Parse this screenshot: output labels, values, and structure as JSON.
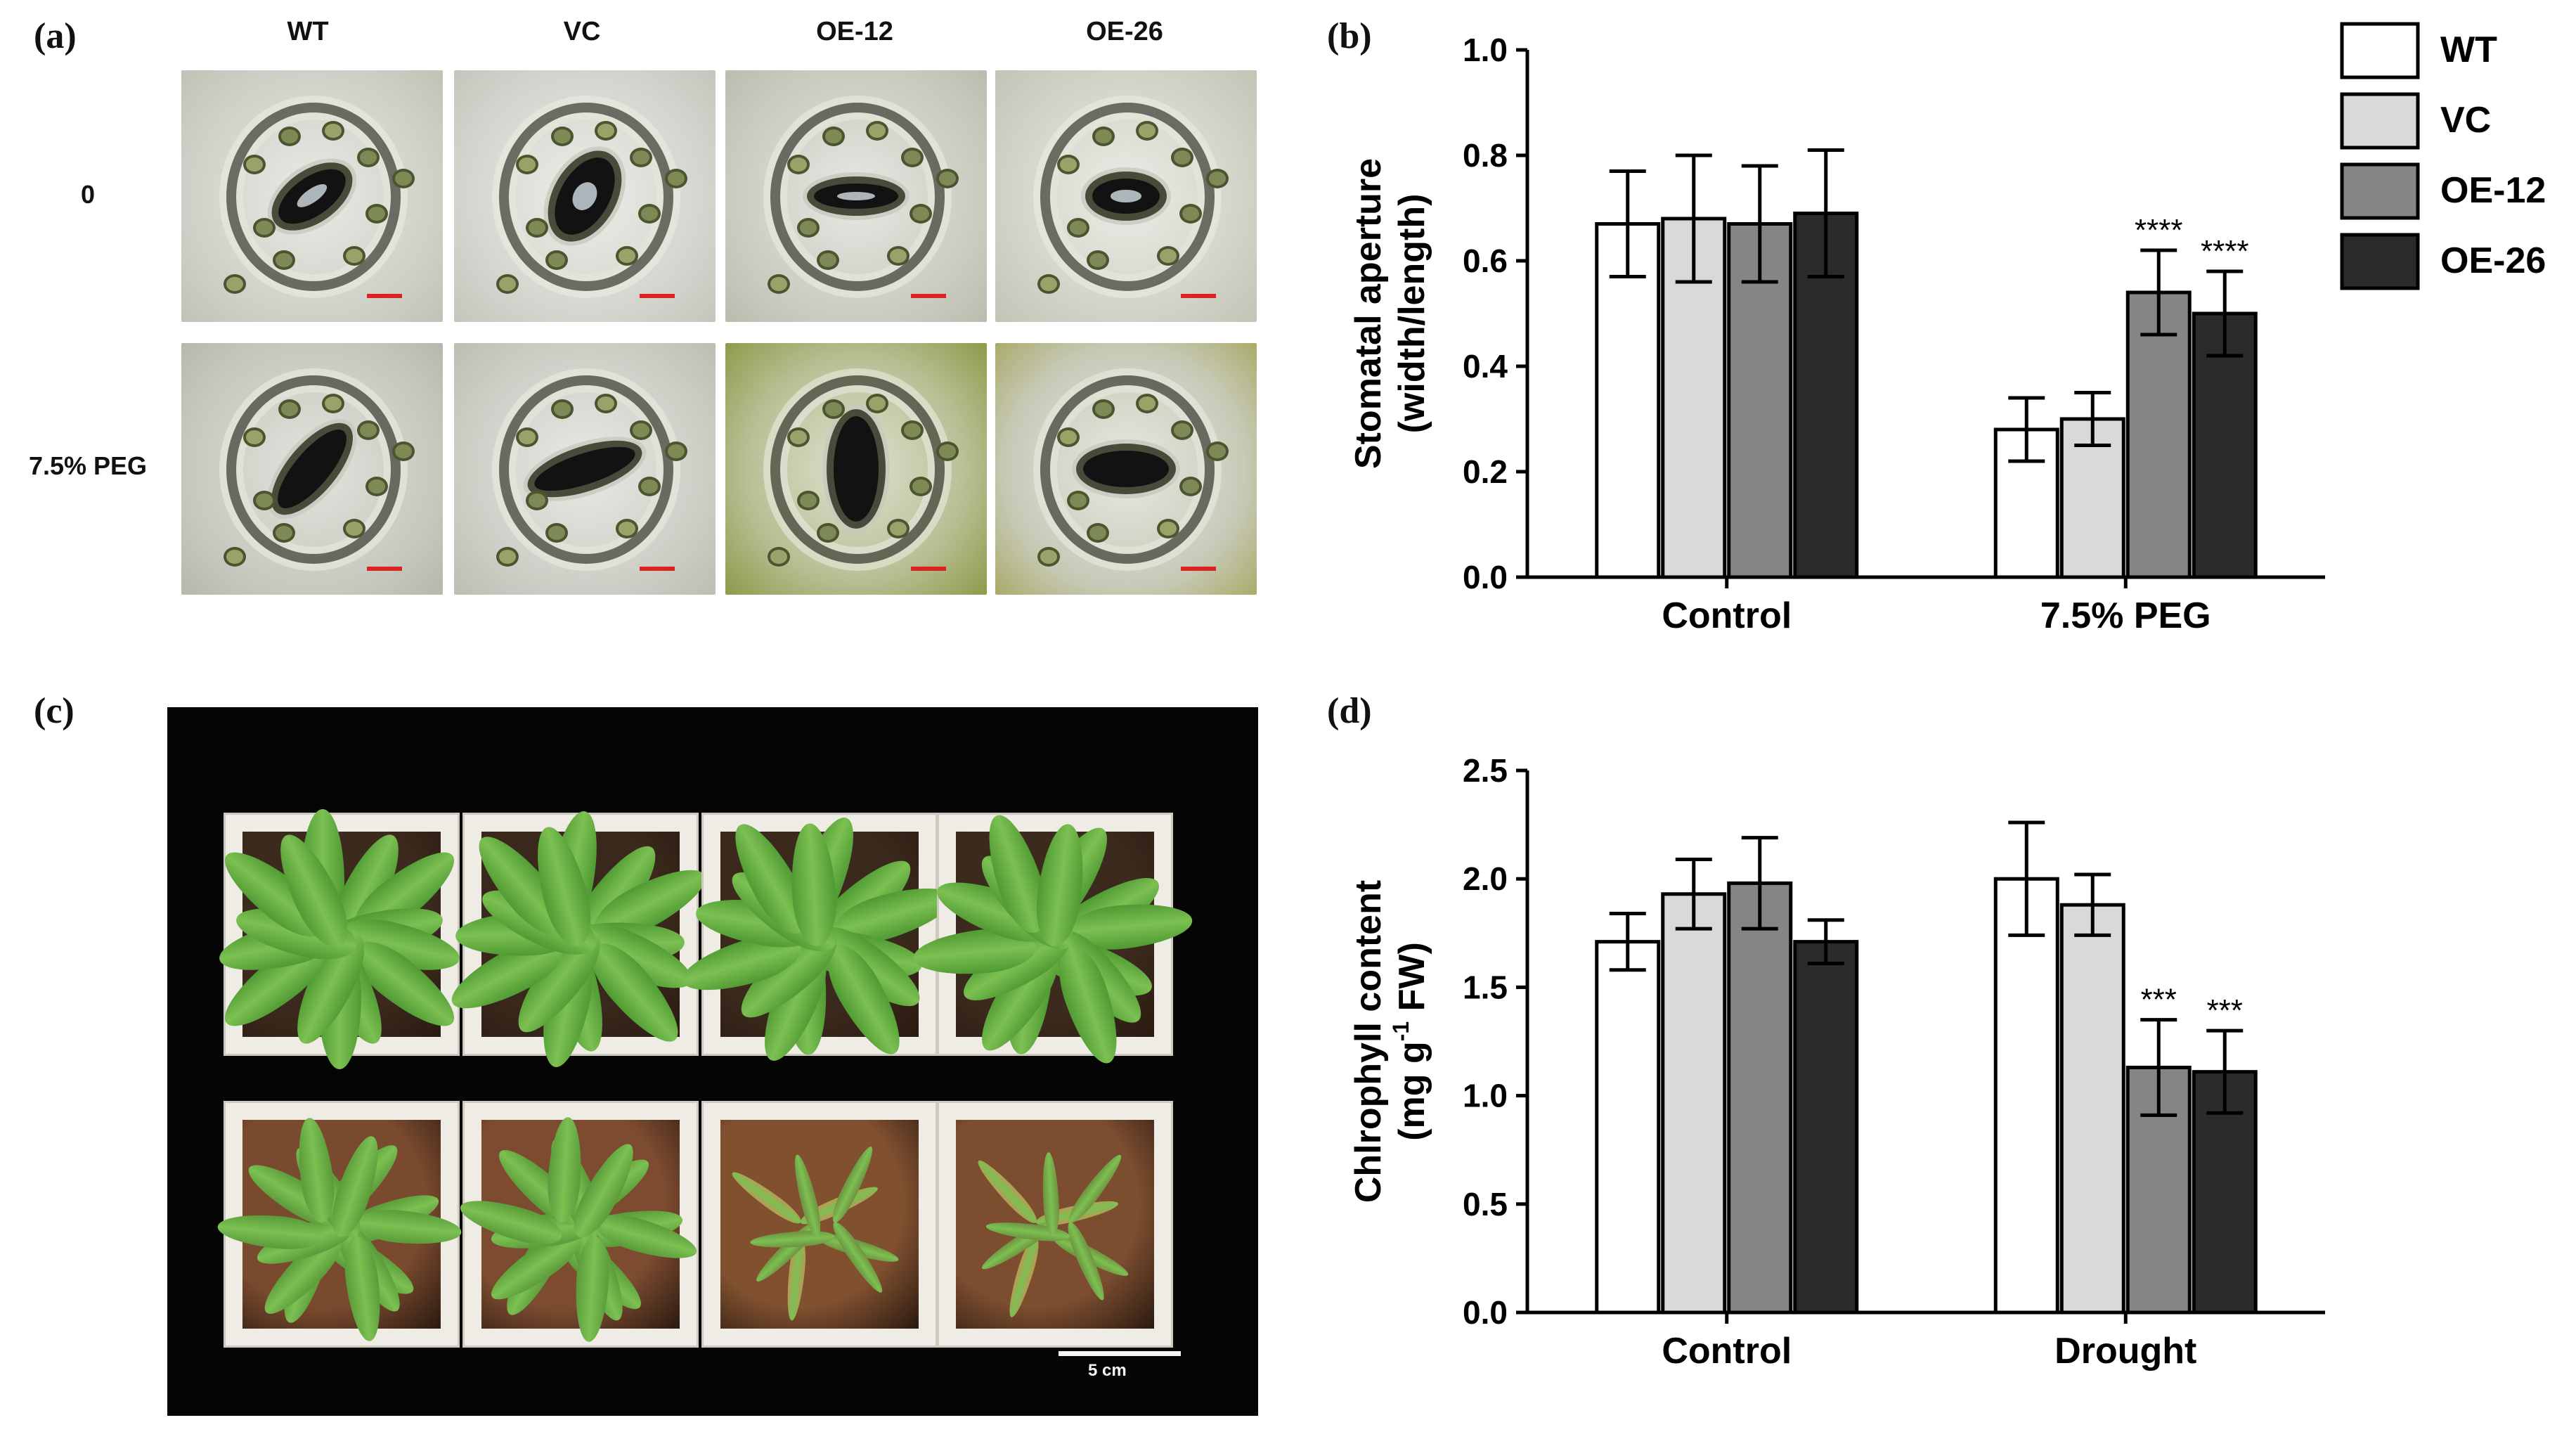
{
  "panels": {
    "a": {
      "letter": "(a)",
      "columns": [
        "WT",
        "VC",
        "OE-12",
        "OE-26"
      ],
      "rows": [
        "0",
        "7.5% PEG"
      ]
    },
    "b": {
      "letter": "(b)"
    },
    "c": {
      "letter": "(c)",
      "scale_label": "5 cm"
    },
    "d": {
      "letter": "(d)"
    }
  },
  "legend": {
    "items": [
      {
        "label": "WT",
        "color": "#ffffff"
      },
      {
        "label": "VC",
        "color": "#d9d9d9"
      },
      {
        "label": "OE-12",
        "color": "#858585"
      },
      {
        "label": "OE-26",
        "color": "#2b2b2b"
      }
    ]
  },
  "chart_data": [
    {
      "type": "bar",
      "panel": "b",
      "ylabel": "Stomatal aperture (width/length)",
      "ylabel_lines": [
        "Stomatal aperture",
        "(width/length)"
      ],
      "ylim": [
        0,
        1.0
      ],
      "yticks": [
        "0.0",
        "0.2",
        "0.4",
        "0.6",
        "0.8",
        "1.0"
      ],
      "categories": [
        "Control",
        "7.5% PEG"
      ],
      "series": [
        {
          "name": "WT",
          "values": [
            0.67,
            0.28
          ],
          "errors": [
            0.1,
            0.06
          ],
          "sig": [
            "",
            ""
          ]
        },
        {
          "name": "VC",
          "values": [
            0.68,
            0.3
          ],
          "errors": [
            0.12,
            0.05
          ],
          "sig": [
            "",
            ""
          ]
        },
        {
          "name": "OE-12",
          "values": [
            0.67,
            0.54
          ],
          "errors": [
            0.11,
            0.08
          ],
          "sig": [
            "",
            "****"
          ]
        },
        {
          "name": "OE-26",
          "values": [
            0.69,
            0.5
          ],
          "errors": [
            0.12,
            0.08
          ],
          "sig": [
            "",
            "****"
          ]
        }
      ]
    },
    {
      "type": "bar",
      "panel": "d",
      "ylabel": "Chlrophyll content (mg g-1 FW)",
      "ylabel_lines": [
        "Chlrophyll content",
        "(mg g",
        "-1",
        " FW)"
      ],
      "ylim": [
        0,
        2.5
      ],
      "yticks": [
        "0.0",
        "0.5",
        "1.0",
        "1.5",
        "2.0",
        "2.5"
      ],
      "categories": [
        "Control",
        "Drought"
      ],
      "series": [
        {
          "name": "WT",
          "values": [
            1.71,
            2.0
          ],
          "errors": [
            0.13,
            0.26
          ],
          "sig": [
            "",
            ""
          ]
        },
        {
          "name": "VC",
          "values": [
            1.93,
            1.88
          ],
          "errors": [
            0.16,
            0.14
          ],
          "sig": [
            "",
            ""
          ]
        },
        {
          "name": "OE-12",
          "values": [
            1.98,
            1.13
          ],
          "errors": [
            0.21,
            0.22
          ],
          "sig": [
            "",
            "***"
          ]
        },
        {
          "name": "OE-26",
          "values": [
            1.71,
            1.11
          ],
          "errors": [
            0.1,
            0.19
          ],
          "sig": [
            "",
            "***"
          ]
        }
      ]
    }
  ]
}
